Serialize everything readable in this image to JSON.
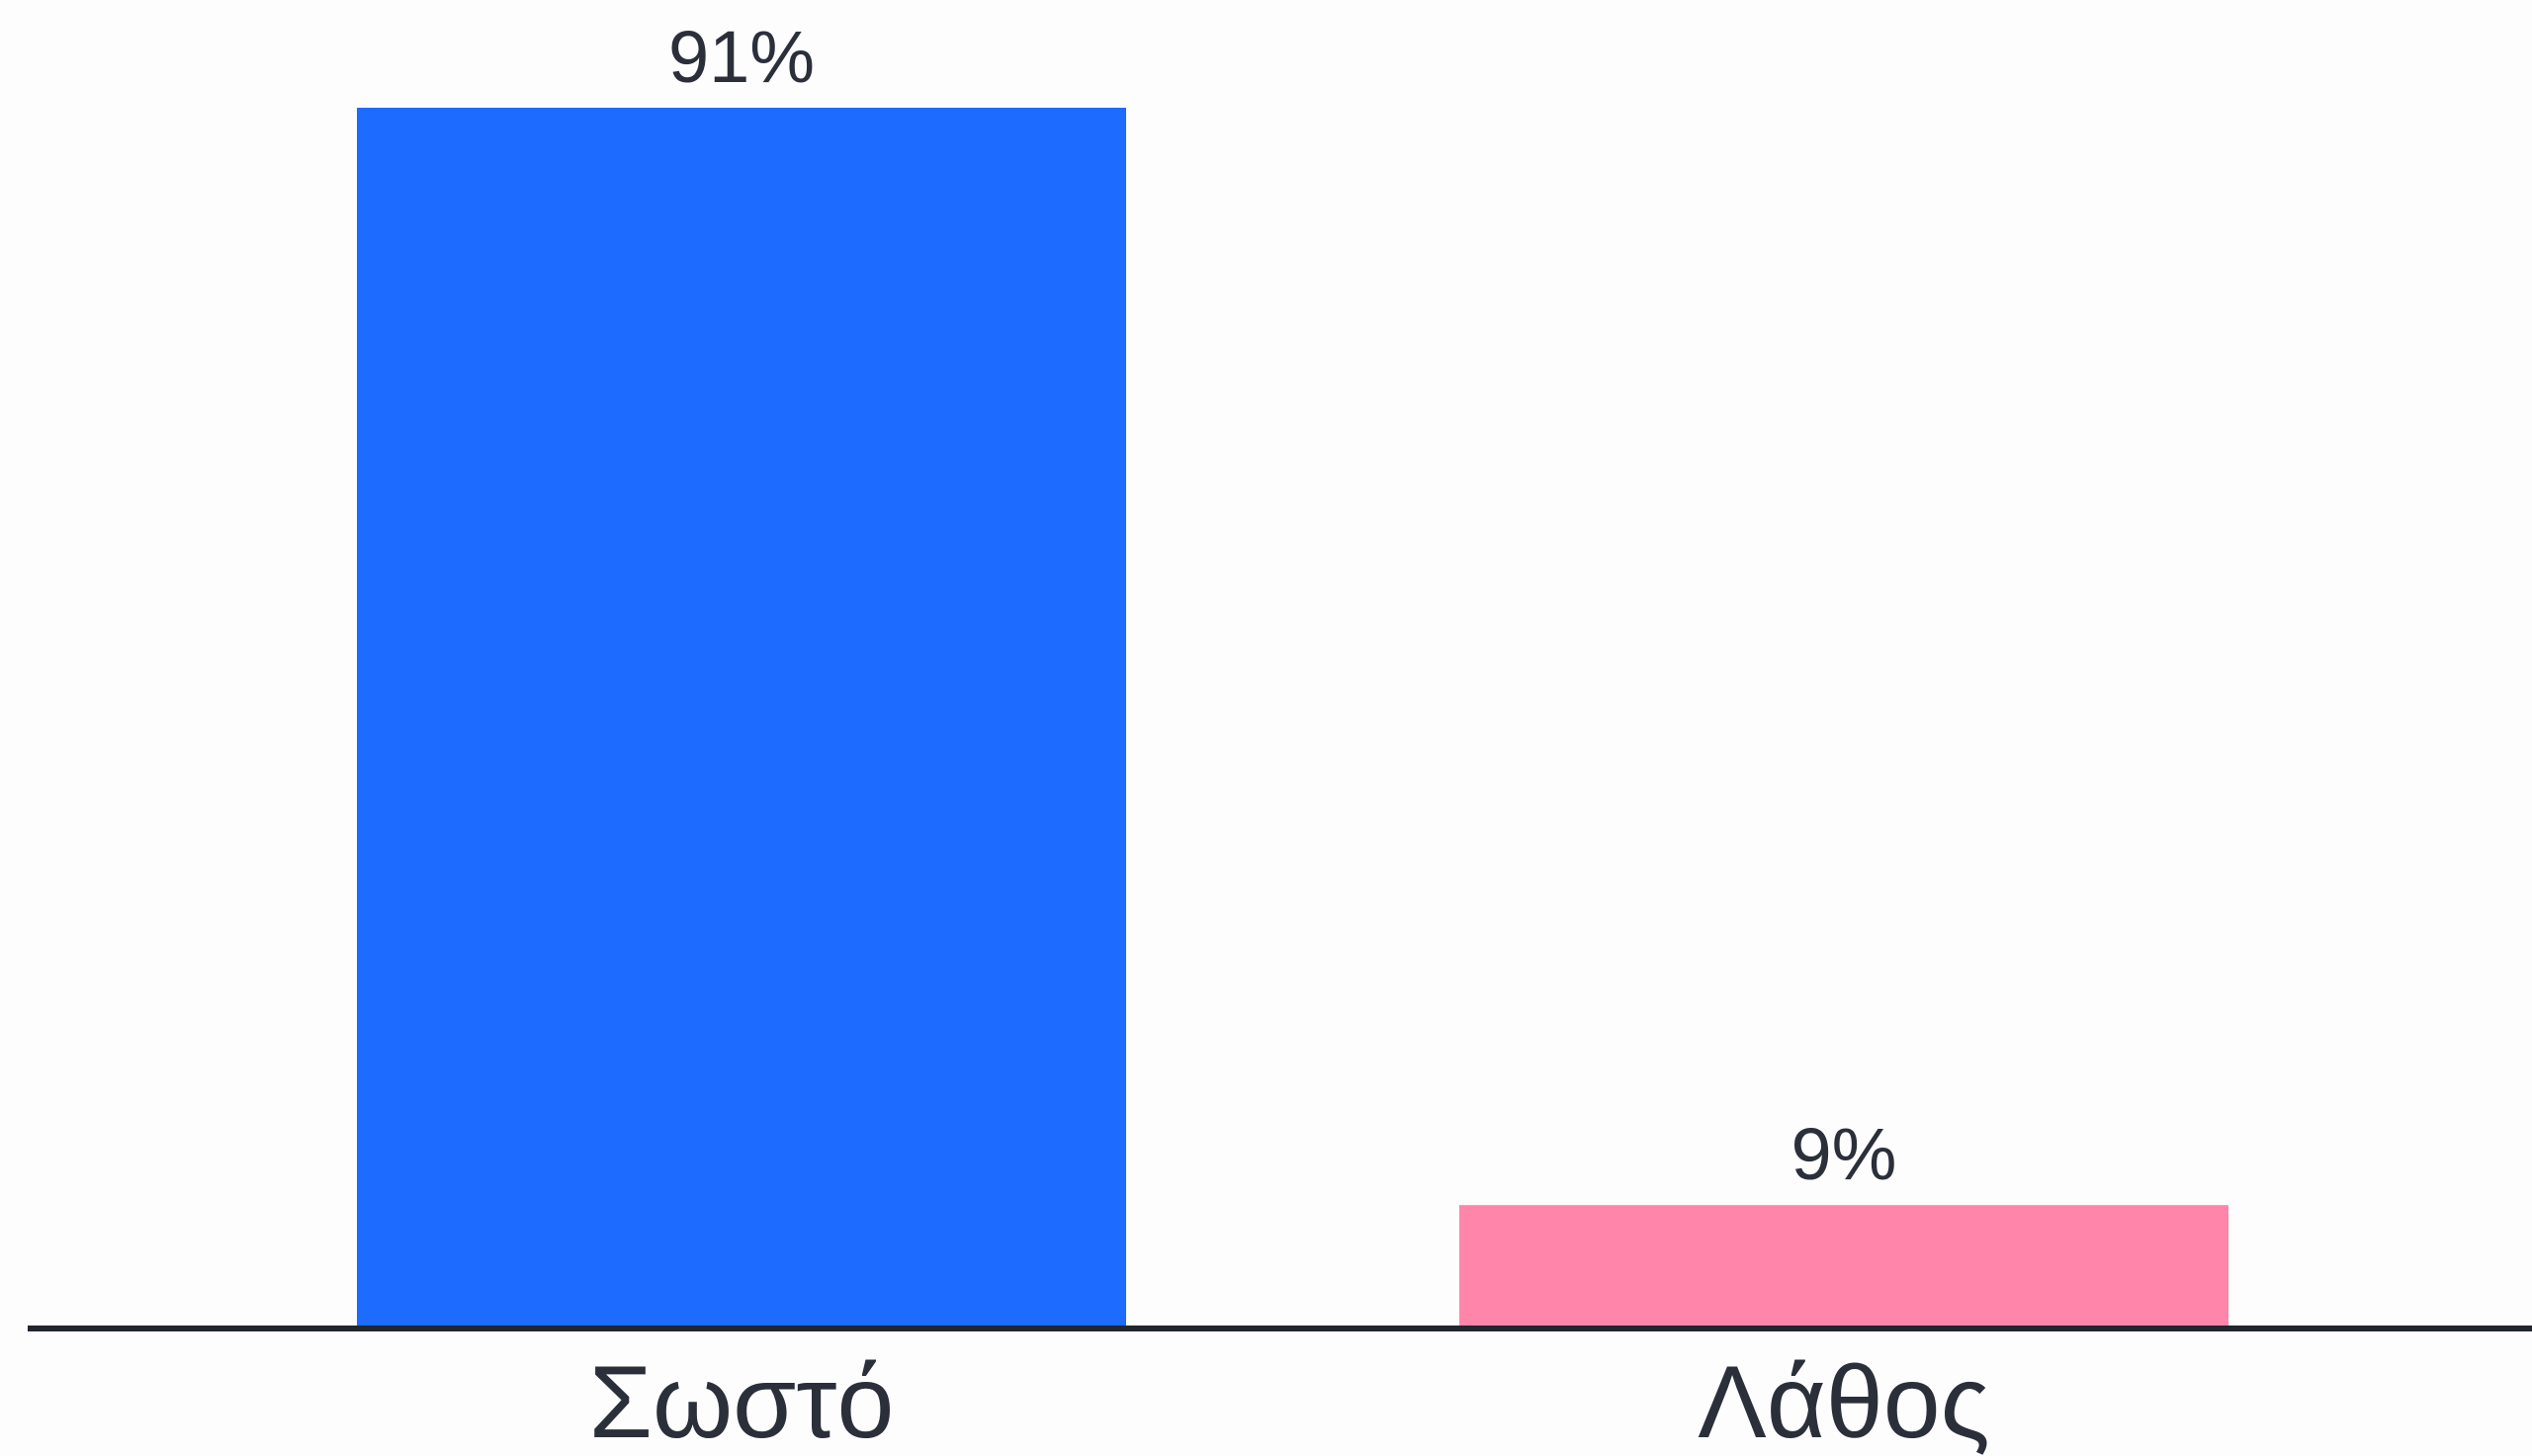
{
  "chart_data": {
    "type": "bar",
    "categories": [
      "Σωστό",
      "Λάθος"
    ],
    "values": [
      91,
      9
    ],
    "value_labels": [
      "91%",
      "9%"
    ],
    "colors": [
      "#1e6bff",
      "#ff85aa"
    ],
    "axis_color": "#22252d",
    "ylim": [
      0,
      91
    ],
    "title": "",
    "xlabel": "",
    "ylabel": "",
    "grid": false,
    "legend": "none"
  }
}
